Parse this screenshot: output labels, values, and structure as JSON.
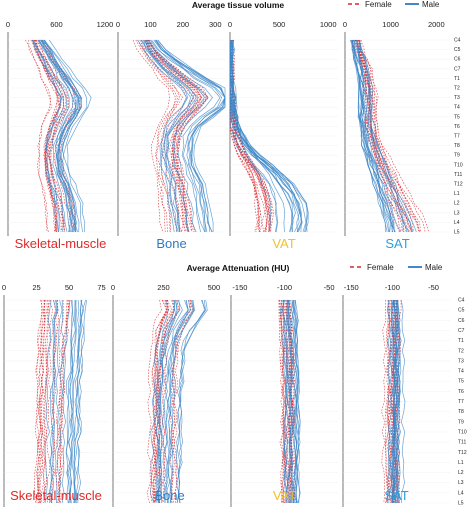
{
  "chart_data": [
    {
      "type": "line",
      "title": "Average tissue volume",
      "orientation": "vertical-profile",
      "legend": {
        "placement": "top-right",
        "entries": [
          {
            "name": "Female",
            "color": "#d9262b",
            "style": "dashed"
          },
          {
            "name": "Male",
            "color": "#2e7bc4",
            "style": "solid"
          }
        ]
      },
      "y_categories": [
        "C4",
        "C5",
        "C6",
        "C7",
        "T1",
        "T2",
        "T3",
        "T4",
        "T5",
        "T6",
        "T7",
        "T8",
        "T9",
        "T10",
        "T11",
        "T12",
        "L1",
        "L2",
        "L3",
        "L4",
        "L5"
      ],
      "panels": [
        {
          "label": "Skeletal-muscle",
          "label_color": "#e02828",
          "xlim": [
            0,
            1300
          ],
          "ticks": [
            0,
            600,
            1200
          ],
          "tick_labels": [
            "0",
            "600",
            "1200"
          ],
          "female_mean": [
            330,
            380,
            440,
            500,
            570,
            640,
            690,
            690,
            640,
            580,
            540,
            510,
            500,
            510,
            530,
            560,
            590,
            620,
            640,
            650,
            650
          ],
          "male_mean": [
            380,
            450,
            520,
            590,
            660,
            740,
            800,
            800,
            740,
            670,
            620,
            590,
            580,
            590,
            610,
            650,
            690,
            720,
            740,
            750,
            750
          ]
        },
        {
          "label": "Bone",
          "label_color": "#2e7bc4",
          "xlim": [
            0,
            330
          ],
          "ticks": [
            0,
            100,
            200,
            300
          ],
          "tick_labels": [
            "0",
            "100",
            "200",
            "300"
          ],
          "female_mean": [
            80,
            95,
            120,
            150,
            180,
            215,
            230,
            215,
            190,
            170,
            160,
            155,
            155,
            160,
            165,
            170,
            175,
            180,
            185,
            190,
            195
          ],
          "male_mean": [
            95,
            115,
            145,
            180,
            220,
            265,
            290,
            270,
            235,
            205,
            190,
            185,
            185,
            190,
            200,
            210,
            215,
            220,
            225,
            230,
            235
          ]
        },
        {
          "label": "VAT",
          "label_color": "#f2c12e",
          "xlim": [
            0,
            1100
          ],
          "ticks": [
            0,
            500,
            1000
          ],
          "tick_labels": [
            "0",
            "500",
            "1000"
          ],
          "female_mean": [
            0,
            0,
            0,
            0,
            5,
            10,
            15,
            20,
            30,
            40,
            60,
            90,
            140,
            200,
            260,
            300,
            330,
            350,
            360,
            360,
            350
          ],
          "male_mean": [
            0,
            0,
            0,
            0,
            5,
            15,
            20,
            30,
            45,
            65,
            100,
            150,
            230,
            330,
            430,
            500,
            560,
            600,
            620,
            620,
            600
          ]
        },
        {
          "label": "SAT",
          "label_color": "#2e9fd9",
          "xlim": [
            0,
            2300
          ],
          "ticks": [
            0,
            1000,
            2000
          ],
          "tick_labels": [
            "0",
            "1000",
            "2000"
          ],
          "female_mean": [
            250,
            300,
            380,
            450,
            500,
            540,
            560,
            560,
            560,
            580,
            620,
            680,
            760,
            850,
            950,
            1050,
            1150,
            1250,
            1350,
            1450,
            1500
          ],
          "male_mean": [
            220,
            270,
            330,
            380,
            420,
            440,
            450,
            450,
            450,
            470,
            500,
            550,
            620,
            700,
            780,
            860,
            940,
            1020,
            1100,
            1180,
            1230
          ]
        }
      ]
    },
    {
      "type": "line",
      "title": "Average Attenuation (HU)",
      "orientation": "vertical-profile",
      "legend": {
        "placement": "top-right",
        "entries": [
          {
            "name": "Female",
            "color": "#d9262b",
            "style": "dashed"
          },
          {
            "name": "Male",
            "color": "#2e7bc4",
            "style": "solid"
          }
        ]
      },
      "y_categories": [
        "C4",
        "C5",
        "C6",
        "C7",
        "T1",
        "T2",
        "T3",
        "T4",
        "T5",
        "T6",
        "T7",
        "T8",
        "T9",
        "T10",
        "T11",
        "T12",
        "L1",
        "L2",
        "L3",
        "L4",
        "L5"
      ],
      "panels": [
        {
          "label": "Skeletal-muscle",
          "label_color": "#e02828",
          "xlim": [
            0,
            80
          ],
          "ticks": [
            0,
            25,
            50,
            75
          ],
          "tick_labels": [
            "0",
            "25",
            "50",
            "75"
          ],
          "female_mean": [
            38,
            38,
            37,
            37,
            36,
            36,
            35,
            35,
            35,
            35,
            34,
            34,
            34,
            34,
            34,
            34,
            34,
            34,
            33,
            33,
            33
          ],
          "male_mean": [
            50,
            50,
            49,
            49,
            49,
            48,
            48,
            48,
            47,
            47,
            47,
            47,
            47,
            47,
            46,
            46,
            46,
            46,
            46,
            46,
            46
          ]
        },
        {
          "label": "Bone",
          "label_color": "#2e7bc4",
          "xlim": [
            0,
            560
          ],
          "ticks": [
            0,
            250,
            500
          ],
          "tick_labels": [
            "0",
            "250",
            "500"
          ],
          "female_mean": [
            320,
            330,
            300,
            280,
            270,
            265,
            260,
            255,
            255,
            255,
            255,
            255,
            255,
            255,
            255,
            255,
            255,
            255,
            255,
            250,
            250
          ],
          "male_mean": [
            370,
            380,
            350,
            320,
            300,
            290,
            285,
            280,
            278,
            275,
            275,
            273,
            272,
            272,
            272,
            271,
            270,
            270,
            270,
            268,
            268
          ]
        },
        {
          "label": "VAT",
          "label_color": "#f2c12e",
          "xlim": [
            -160,
            -40
          ],
          "ticks": [
            -150,
            -100,
            -50
          ],
          "tick_labels": [
            "-150",
            "-100",
            "-50"
          ],
          "female_mean": [
            -100,
            -100,
            -99,
            -98,
            -98,
            -97,
            -97,
            -96,
            -96,
            -96,
            -96,
            -96,
            -96,
            -96,
            -96,
            -96,
            -96,
            -96,
            -96,
            -96,
            -96
          ],
          "male_mean": [
            -94,
            -94,
            -93,
            -93,
            -92,
            -92,
            -92,
            -91,
            -91,
            -91,
            -91,
            -91,
            -91,
            -91,
            -91,
            -91,
            -91,
            -91,
            -91,
            -91,
            -91
          ]
        },
        {
          "label": "SAT",
          "label_color": "#2e9fd9",
          "xlim": [
            -160,
            -30
          ],
          "ticks": [
            -150,
            -100,
            -50
          ],
          "tick_labels": [
            "-150",
            "-100",
            "-50"
          ],
          "female_mean": [
            -100,
            -100,
            -100,
            -101,
            -101,
            -101,
            -101,
            -101,
            -101,
            -101,
            -101,
            -102,
            -102,
            -102,
            -102,
            -102,
            -102,
            -102,
            -102,
            -102,
            -102
          ],
          "male_mean": [
            -95,
            -95,
            -94,
            -94,
            -94,
            -94,
            -94,
            -94,
            -94,
            -94,
            -94,
            -95,
            -95,
            -95,
            -95,
            -95,
            -95,
            -95,
            -95,
            -95,
            -95
          ]
        }
      ]
    }
  ]
}
